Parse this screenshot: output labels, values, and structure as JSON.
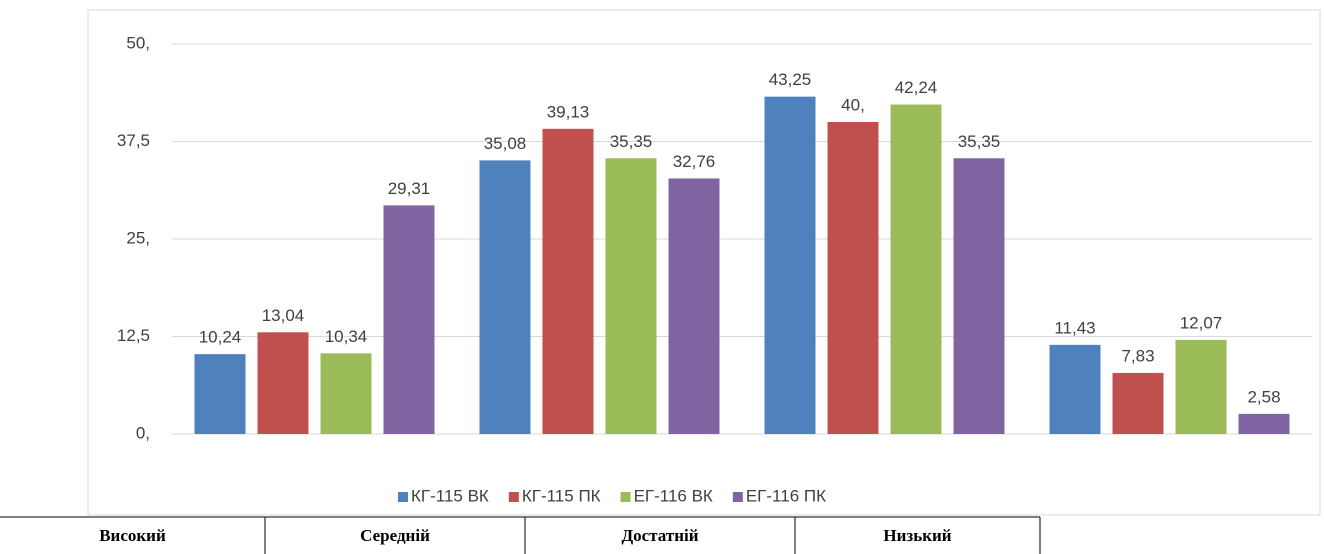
{
  "chart_data": {
    "type": "bar",
    "categories": [
      "Високий",
      "Середній",
      "Достатній",
      "Низький"
    ],
    "series": [
      {
        "name": "КГ-115 ВК",
        "color": "#4f81bd",
        "values": [
          10.24,
          35.08,
          43.25,
          11.43
        ],
        "value_labels": [
          "10,24",
          "35,08",
          "43,25",
          "11,43"
        ]
      },
      {
        "name": "КГ-115 ПК",
        "color": "#c0504d",
        "values": [
          13.04,
          39.13,
          40,
          7.83
        ],
        "value_labels": [
          "13,04",
          "39,13",
          "40,",
          "7,83"
        ]
      },
      {
        "name": "ЕГ-116 ВК",
        "color": "#9bbb59",
        "values": [
          10.34,
          35.35,
          42.24,
          12.07
        ],
        "value_labels": [
          "10,34",
          "35,35",
          "42,24",
          "12,07"
        ]
      },
      {
        "name": "ЕГ-116 ПК",
        "color": "#8064a2",
        "values": [
          29.31,
          32.76,
          35.35,
          2.58
        ],
        "value_labels": [
          "29,31",
          "32,76",
          "35,35",
          "2,58"
        ]
      }
    ],
    "ylim": [
      0,
      50
    ],
    "yticks": [
      {
        "value": 0,
        "label": "0,"
      },
      {
        "value": 12.5,
        "label": "12,5"
      },
      {
        "value": 25,
        "label": "25,"
      },
      {
        "value": 37.5,
        "label": "37,5"
      },
      {
        "value": 50,
        "label": "50,"
      }
    ],
    "grid": true,
    "legend": "bottom"
  }
}
